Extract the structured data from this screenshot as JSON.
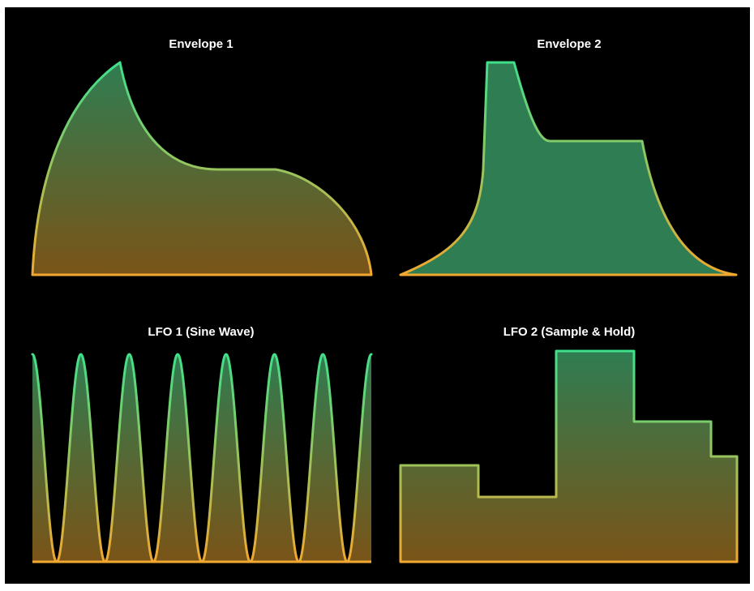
{
  "panels": {
    "envelope1": {
      "title": "Envelope 1",
      "shape": "envelope",
      "stages": [
        "attack",
        "decay",
        "sustain",
        "release"
      ]
    },
    "envelope2": {
      "title": "Envelope 2",
      "shape": "envelope",
      "stages": [
        "attack",
        "hold",
        "decay",
        "sustain",
        "release"
      ]
    },
    "lfo1": {
      "title": "LFO 1 (Sine Wave)",
      "shape": "sine",
      "cycles": 7
    },
    "lfo2": {
      "title": "LFO 2 (Sample & Hold)",
      "shape": "sample-and-hold",
      "step_levels": [
        0.46,
        0.3,
        1.0,
        0.66,
        0.5
      ]
    }
  },
  "colors": {
    "background": "#000000",
    "outer_background": "#ffffff",
    "title_text": "#ffffff",
    "gradient_top": "#3fe08a",
    "gradient_bottom": "#f0a830",
    "fill_top": "#2f7d52",
    "fill_bottom": "#7a5418"
  }
}
